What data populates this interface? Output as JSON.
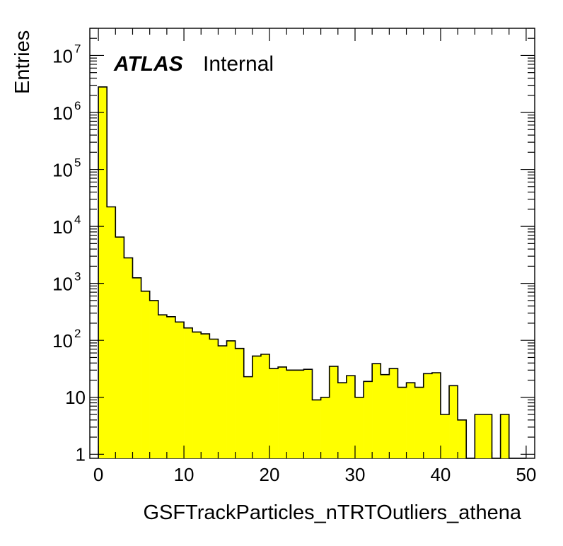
{
  "chart_data": {
    "type": "bar",
    "style": "histogram",
    "xlabel": "GSFTrackParticles_nTRTOutliers_athena",
    "ylabel": "Entries",
    "xlim": [
      -1,
      51
    ],
    "ylim": [
      0.85,
      30000000
    ],
    "yscale": "log",
    "grid": false,
    "fill_color": "#ffff00",
    "line_color": "#000000",
    "label": {
      "bold": "ATLAS",
      "normal": "Internal"
    },
    "x_ticks": [
      "0",
      "10",
      "20",
      "30",
      "40",
      "50"
    ],
    "y_ticks": [
      {
        "value": 1,
        "label": "1"
      },
      {
        "value": 10,
        "label": "10"
      },
      {
        "value": 100,
        "base": "10",
        "exp": "2"
      },
      {
        "value": 1000,
        "base": "10",
        "exp": "3"
      },
      {
        "value": 10000,
        "base": "10",
        "exp": "4"
      },
      {
        "value": 100000,
        "base": "10",
        "exp": "5"
      },
      {
        "value": 1000000,
        "base": "10",
        "exp": "6"
      },
      {
        "value": 10000000,
        "base": "10",
        "exp": "7"
      }
    ],
    "bin_width": 1,
    "bin_edges_start": 0,
    "values": [
      2800000,
      22000,
      6500,
      2800,
      1250,
      730,
      500,
      280,
      260,
      210,
      165,
      140,
      130,
      105,
      80,
      98,
      72,
      23,
      53,
      57,
      32,
      34,
      30,
      30,
      31,
      9,
      10,
      35,
      18,
      24,
      10,
      19,
      39,
      25,
      32,
      15,
      18,
      15,
      26,
      27,
      5,
      16,
      4,
      0,
      5,
      5,
      0,
      5,
      0,
      0
    ]
  }
}
